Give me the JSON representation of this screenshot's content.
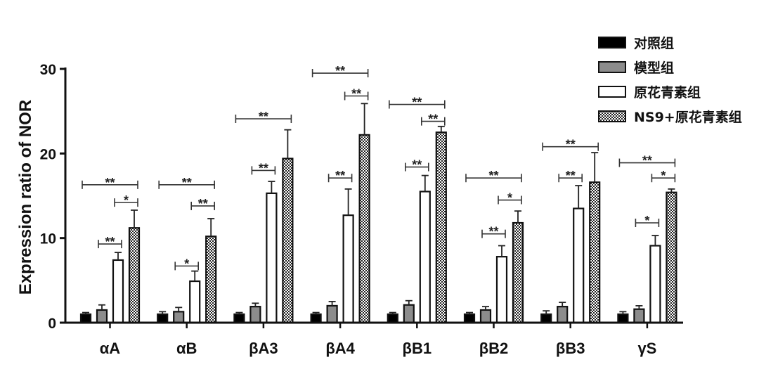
{
  "chart_data": {
    "type": "bar",
    "ylabel": "Expression ratio of NOR",
    "ylim": [
      0,
      30
    ],
    "yticks": [
      0,
      10,
      20,
      30
    ],
    "grid": false,
    "legend_position": "top-right",
    "categories": [
      "αA",
      "αB",
      "βA3",
      "βA4",
      "βB1",
      "βB2",
      "βB3",
      "γS"
    ],
    "series": [
      {
        "name": "对照组",
        "pattern": "solid-black",
        "color": "#000000",
        "values": [
          1.0,
          1.0,
          1.0,
          1.0,
          1.0,
          1.0,
          1.0,
          1.0
        ],
        "errors": [
          0.2,
          0.3,
          0.2,
          0.2,
          0.2,
          0.2,
          0.4,
          0.3
        ]
      },
      {
        "name": "模型组",
        "pattern": "gray",
        "color": "#8c8c8c",
        "values": [
          1.5,
          1.3,
          1.9,
          2.0,
          2.1,
          1.5,
          1.9,
          1.6
        ],
        "errors": [
          0.6,
          0.5,
          0.4,
          0.5,
          0.5,
          0.4,
          0.5,
          0.4
        ]
      },
      {
        "name": "原花青素组",
        "pattern": "white",
        "color": "#ffffff",
        "values": [
          7.4,
          4.9,
          15.3,
          12.7,
          15.5,
          7.8,
          13.5,
          9.1
        ],
        "errors": [
          0.9,
          1.2,
          1.4,
          3.1,
          1.9,
          1.3,
          2.7,
          1.2
        ]
      },
      {
        "name": "NS9+原花青素组",
        "pattern": "checker",
        "color": "#333333",
        "values": [
          11.2,
          10.2,
          19.4,
          22.2,
          22.5,
          11.8,
          16.6,
          15.4
        ],
        "errors": [
          2.1,
          2.1,
          3.4,
          3.7,
          0.7,
          1.4,
          3.5,
          0.4
        ]
      }
    ],
    "significance": [
      {
        "category": "αA",
        "from": 0,
        "to": 3,
        "label": "**",
        "y": 16.3
      },
      {
        "category": "αA",
        "from": 2,
        "to": 3,
        "label": "*",
        "y": 14.2
      },
      {
        "category": "αA",
        "from": 1,
        "to": 2,
        "label": "**",
        "y": 9.3
      },
      {
        "category": "αB",
        "from": 0,
        "to": 3,
        "label": "**",
        "y": 16.3
      },
      {
        "category": "αB",
        "from": 2,
        "to": 3,
        "label": "**",
        "y": 13.8
      },
      {
        "category": "αB",
        "from": 1,
        "to": 2,
        "label": "*",
        "y": 6.7
      },
      {
        "category": "βA3",
        "from": 0,
        "to": 3,
        "label": "**",
        "y": 24.1
      },
      {
        "category": "βA3",
        "from": 1,
        "to": 2,
        "label": "**",
        "y": 18.0
      },
      {
        "category": "βA4",
        "from": 0,
        "to": 3,
        "label": "**",
        "y": 29.5
      },
      {
        "category": "βA4",
        "from": 2,
        "to": 3,
        "label": "**",
        "y": 26.8
      },
      {
        "category": "βA4",
        "from": 1,
        "to": 2,
        "label": "**",
        "y": 17.1
      },
      {
        "category": "βB1",
        "from": 0,
        "to": 3,
        "label": "**",
        "y": 25.8
      },
      {
        "category": "βB1",
        "from": 2,
        "to": 3,
        "label": "**",
        "y": 23.8
      },
      {
        "category": "βB1",
        "from": 1,
        "to": 2,
        "label": "**",
        "y": 18.4
      },
      {
        "category": "βB2",
        "from": 0,
        "to": 3,
        "label": "**",
        "y": 17.1
      },
      {
        "category": "βB2",
        "from": 2,
        "to": 3,
        "label": "*",
        "y": 14.5
      },
      {
        "category": "βB2",
        "from": 1,
        "to": 2,
        "label": "**",
        "y": 10.5
      },
      {
        "category": "βB3",
        "from": 0,
        "to": 3,
        "label": "**",
        "y": 20.8
      },
      {
        "category": "βB3",
        "from": 1,
        "to": 2,
        "label": "**",
        "y": 17.1
      },
      {
        "category": "γS",
        "from": 0,
        "to": 3,
        "label": "**",
        "y": 18.9
      },
      {
        "category": "γS",
        "from": 2,
        "to": 3,
        "label": "*",
        "y": 17.1
      },
      {
        "category": "γS",
        "from": 1,
        "to": 2,
        "label": "*",
        "y": 11.8
      }
    ]
  }
}
